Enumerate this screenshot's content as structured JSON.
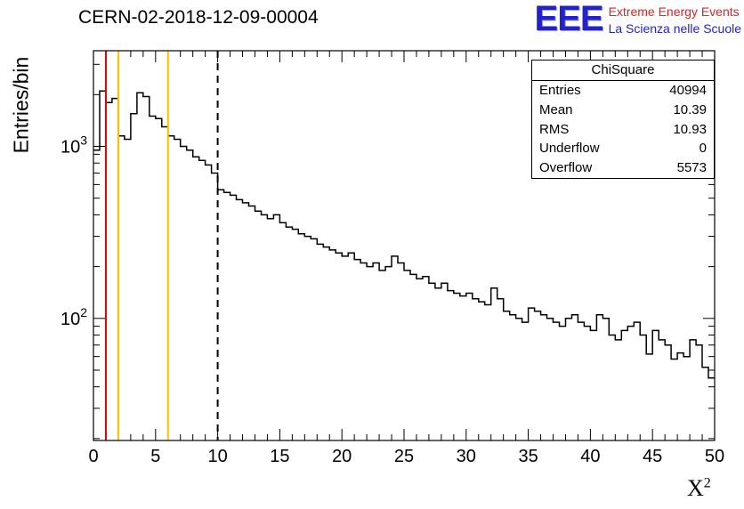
{
  "chart_data": {
    "type": "histogram-step",
    "title": "CERN-02-2018-12-09-00004",
    "xlabel_base": "X",
    "xlabel_sup": "2",
    "ylabel": "Entries/bin",
    "xlim": [
      0,
      50
    ],
    "ylim": [
      19.5,
      3600
    ],
    "yscale": "log",
    "x_major_ticks": [
      0,
      5,
      10,
      15,
      20,
      25,
      30,
      35,
      40,
      45,
      50
    ],
    "x_minor_step": 1,
    "y_major_ticks": [
      100,
      1000
    ],
    "grid": false,
    "bin_start": 0,
    "bin_width": 0.5,
    "line_color": "#000000",
    "counts": [
      950,
      2100,
      1800,
      1900,
      1150,
      1100,
      1550,
      2050,
      1950,
      1500,
      1450,
      1300,
      1150,
      1100,
      1000,
      950,
      870,
      830,
      780,
      700,
      560,
      540,
      520,
      490,
      470,
      450,
      420,
      400,
      380,
      400,
      360,
      340,
      330,
      310,
      300,
      290,
      270,
      260,
      250,
      240,
      230,
      240,
      220,
      210,
      200,
      210,
      190,
      200,
      230,
      210,
      190,
      180,
      170,
      175,
      160,
      150,
      160,
      145,
      140,
      135,
      140,
      130,
      125,
      120,
      150,
      130,
      110,
      105,
      100,
      95,
      115,
      110,
      105,
      100,
      95,
      90,
      100,
      105,
      95,
      90,
      85,
      105,
      100,
      80,
      75,
      85,
      90,
      95,
      80,
      62,
      85,
      75,
      70,
      58,
      63,
      60,
      75,
      70,
      52,
      45
    ],
    "vlines": [
      {
        "x": 1,
        "color": "#e60000",
        "style": "solid"
      },
      {
        "x": 2,
        "color": "#ffbf00",
        "style": "solid"
      },
      {
        "x": 6,
        "color": "#ffbf00",
        "style": "solid"
      },
      {
        "x": 10,
        "color": "#000000",
        "style": "dashed"
      }
    ]
  },
  "stats": {
    "title": "ChiSquare",
    "rows": [
      {
        "label": "Entries",
        "value": "40994"
      },
      {
        "label": "Mean",
        "value": "10.39"
      },
      {
        "label": "RMS",
        "value": "10.93"
      },
      {
        "label": "Underflow",
        "value": "0"
      },
      {
        "label": "Overflow",
        "value": "5573"
      }
    ]
  },
  "logo": {
    "acronym": "EEE",
    "line1": "Extreme Energy Events",
    "line2": "La Scienza nelle Scuole",
    "color_blue": "#2222cc",
    "color_red": "#dd2222"
  }
}
